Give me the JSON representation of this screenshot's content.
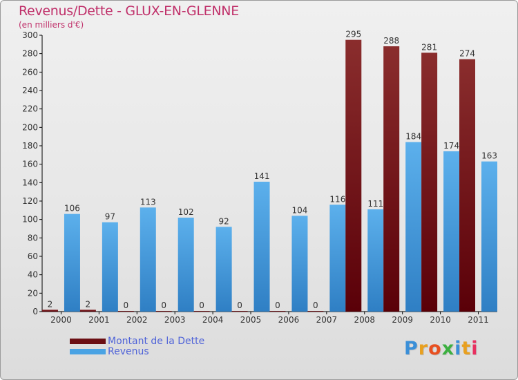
{
  "chart_data": {
    "type": "bar",
    "title": "Revenus/Dette - GLUX-EN-GLENNE",
    "subtitle": "(en milliers d'€)",
    "categories": [
      "2000",
      "2001",
      "2002",
      "2003",
      "2004",
      "2005",
      "2006",
      "2007",
      "2008",
      "2009",
      "2010",
      "2011"
    ],
    "series": [
      {
        "name": "Montant de la Dette",
        "color": "#6b0f14",
        "values": [
          2,
          2,
          0,
          0,
          0,
          0,
          0,
          0,
          295,
          288,
          281,
          274
        ]
      },
      {
        "name": "Revenus",
        "color": "#4aa3e4",
        "values": [
          106,
          97,
          113,
          102,
          92,
          141,
          104,
          116,
          111,
          184,
          174,
          163
        ]
      }
    ],
    "ylim": [
      0,
      300
    ],
    "yticks": [
      0,
      20,
      40,
      60,
      80,
      100,
      120,
      140,
      160,
      180,
      200,
      220,
      240,
      260,
      280,
      300
    ],
    "grid": false,
    "legend_position": "bottom-left"
  },
  "logo": {
    "letters": [
      "P",
      "r",
      "o",
      "x",
      "i",
      "t",
      "i"
    ],
    "colors": [
      "#3a8fd8",
      "#e8a020",
      "#e85020",
      "#3cb040",
      "#3a8fd8",
      "#e8a020",
      "#e83060"
    ]
  }
}
